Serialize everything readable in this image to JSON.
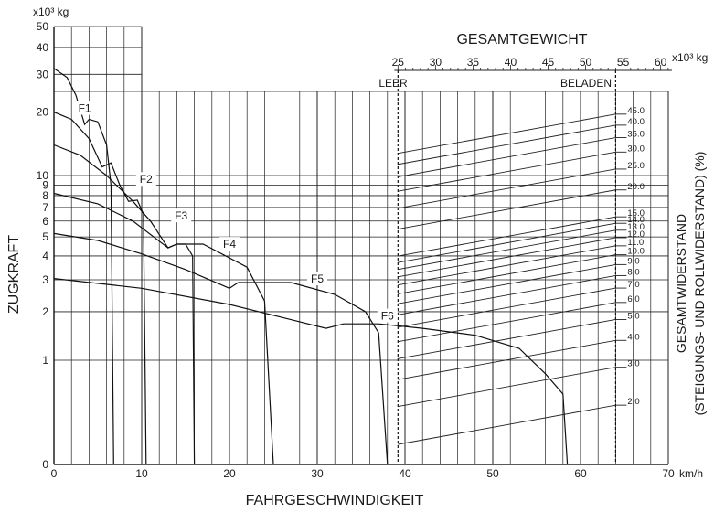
{
  "chart_data": {
    "type": "line",
    "xlabel": "FAHRGESCHWINDIGKEIT",
    "x_unit": "km/h",
    "x_ticks": [
      0,
      10,
      20,
      30,
      40,
      50,
      60,
      70
    ],
    "xlim": [
      0,
      70
    ],
    "ylabel": "ZUGKRAFT",
    "y_unit": "x10³ kg",
    "y_scale": "log",
    "y_ticks": [
      "0",
      "1",
      "2",
      "3",
      "4",
      "5",
      "6",
      "7",
      "8",
      "9",
      "10",
      "20",
      "30",
      "40",
      "50"
    ],
    "ylim": [
      0,
      50
    ],
    "weight_axis": {
      "title": "GESAMTGEWICHT",
      "unit": "x10³ kg",
      "ticks": [
        25,
        30,
        35,
        40,
        45,
        50,
        55,
        60
      ],
      "empty_label": "LEER",
      "empty_value": 25,
      "loaded_label": "BELADEN",
      "loaded_value": 54
    },
    "resistance_axis": {
      "title_line1": "GESAMTWIDERSTAND",
      "title_line2": "(STEIGUNGS- UND ROLLWIDERSTAND) (%)",
      "values": [
        "2.0",
        "3.0",
        "4.0",
        "5.0",
        "6.0",
        "7.0",
        "8.0",
        "9.0",
        "10.0",
        "11.0",
        "12.0",
        "13.0",
        "14.0",
        "15.0",
        "20.0",
        "25.0",
        "30.0",
        "35.0",
        "40.0",
        "45.0"
      ]
    },
    "series": [
      {
        "name": "F1",
        "points": [
          [
            0,
            32
          ],
          [
            1.5,
            29
          ],
          [
            2.5,
            24
          ],
          [
            3.5,
            17.5
          ],
          [
            4,
            18.5
          ],
          [
            5,
            18
          ],
          [
            6,
            14
          ],
          [
            6.5,
            9
          ],
          [
            6.8,
            0
          ]
        ]
      },
      {
        "name": "F2",
        "points": [
          [
            0,
            20
          ],
          [
            2,
            18.5
          ],
          [
            4,
            15
          ],
          [
            5.5,
            11
          ],
          [
            6.5,
            11.5
          ],
          [
            7.5,
            9
          ],
          [
            8.5,
            7.5
          ],
          [
            9.5,
            7.6
          ],
          [
            10.2,
            6.5
          ],
          [
            10.5,
            0
          ]
        ]
      },
      {
        "name": "F3",
        "points": [
          [
            0,
            14
          ],
          [
            3,
            12.5
          ],
          [
            6,
            10
          ],
          [
            9,
            7.5
          ],
          [
            11,
            6
          ],
          [
            13,
            4.4
          ],
          [
            14,
            4.6
          ],
          [
            15,
            4.6
          ],
          [
            15.8,
            4
          ],
          [
            16,
            0
          ]
        ]
      },
      {
        "name": "F4",
        "points": [
          [
            0,
            8.2
          ],
          [
            5,
            7.3
          ],
          [
            9,
            6
          ],
          [
            13,
            4.4
          ],
          [
            14,
            4.6
          ],
          [
            17,
            4.6
          ],
          [
            22,
            3.5
          ],
          [
            24,
            2.3
          ],
          [
            25,
            0
          ]
        ]
      },
      {
        "name": "F5",
        "points": [
          [
            0,
            5.2
          ],
          [
            5,
            4.8
          ],
          [
            10,
            4.1
          ],
          [
            15,
            3.4
          ],
          [
            20,
            2.7
          ],
          [
            21,
            2.9
          ],
          [
            27,
            2.9
          ],
          [
            32,
            2.5
          ],
          [
            35.5,
            2
          ],
          [
            37,
            1.5
          ],
          [
            38,
            0
          ]
        ]
      },
      {
        "name": "F6",
        "points": [
          [
            0,
            3.05
          ],
          [
            10,
            2.7
          ],
          [
            20,
            2.2
          ],
          [
            27,
            1.8
          ],
          [
            31,
            1.6
          ],
          [
            33,
            1.7
          ],
          [
            37,
            1.7
          ],
          [
            42,
            1.6
          ],
          [
            48,
            1.45
          ],
          [
            53,
            1.2
          ],
          [
            56,
            0.8
          ],
          [
            58,
            0.55
          ],
          [
            58.5,
            0
          ]
        ]
      }
    ],
    "grid": true,
    "legend": "inline labels F1–F6"
  }
}
